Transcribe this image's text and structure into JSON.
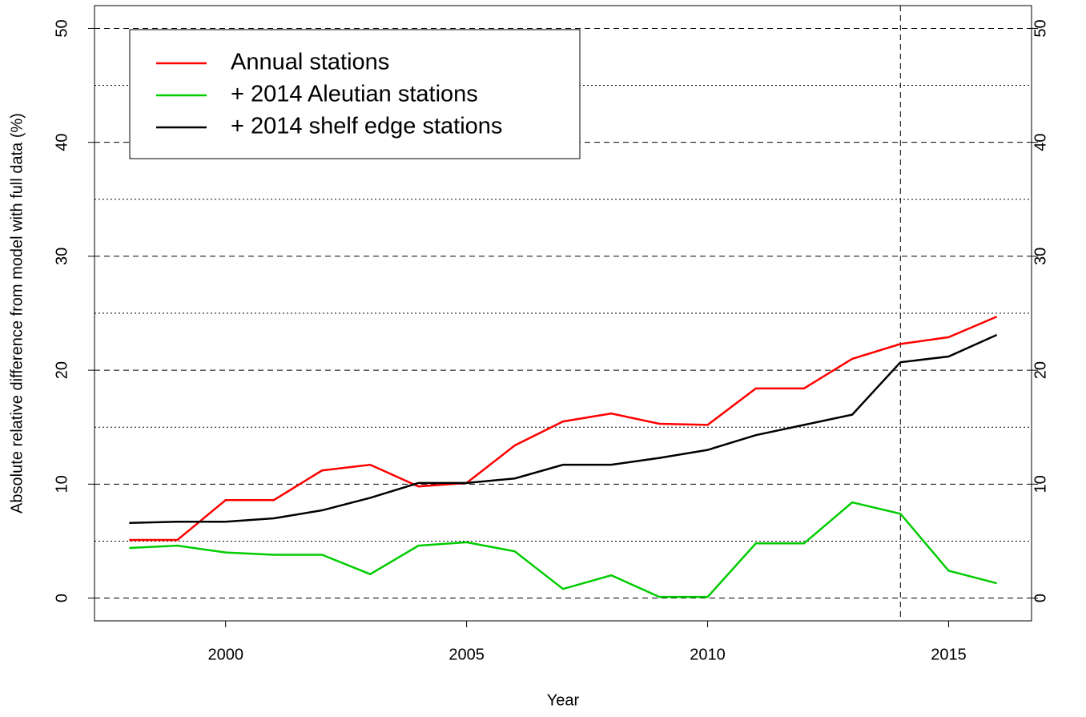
{
  "chart_data": {
    "type": "line",
    "x_label": "Year",
    "y_label": "Absolute relative difference from model with full data (%)",
    "x": [
      1998,
      1999,
      2000,
      2001,
      2002,
      2003,
      2004,
      2005,
      2006,
      2007,
      2008,
      2009,
      2010,
      2011,
      2012,
      2013,
      2014,
      2015,
      2016
    ],
    "series": [
      {
        "name": "Annual stations",
        "color": "#ff0000",
        "values": [
          5.1,
          5.1,
          8.6,
          8.6,
          11.2,
          11.7,
          9.8,
          10.1,
          13.4,
          15.5,
          16.2,
          15.3,
          15.2,
          18.4,
          18.4,
          21.0,
          22.3,
          22.9,
          24.7
        ]
      },
      {
        "name": "+ 2014 Aleutian stations",
        "color": "#00cc00",
        "values": [
          4.4,
          4.6,
          4.0,
          3.8,
          3.8,
          2.1,
          4.6,
          4.9,
          4.1,
          0.8,
          2.0,
          0.1,
          0.1,
          4.8,
          4.8,
          8.4,
          7.4,
          2.4,
          1.3
        ]
      },
      {
        "name": "+ 2014 shelf edge stations",
        "color": "#000000",
        "values": [
          6.6,
          6.7,
          6.7,
          7.0,
          7.7,
          8.8,
          10.1,
          10.1,
          10.5,
          11.7,
          11.7,
          12.3,
          13.0,
          14.3,
          15.2,
          16.1,
          20.7,
          21.2,
          23.1
        ]
      }
    ],
    "xlim": [
      1997.28,
      2016.72
    ],
    "xticks": [
      2000,
      2005,
      2010,
      2015
    ],
    "ylim": [
      -2,
      52
    ],
    "yticks": [
      0,
      10,
      20,
      30,
      40,
      50
    ],
    "y2lim": [
      -2,
      52
    ],
    "y2ticks": [
      0,
      10,
      20,
      30,
      40,
      50
    ],
    "grid": true,
    "minor_grid": [
      5,
      15,
      25,
      35,
      45
    ],
    "vline": 2014,
    "legend": "topleft"
  }
}
